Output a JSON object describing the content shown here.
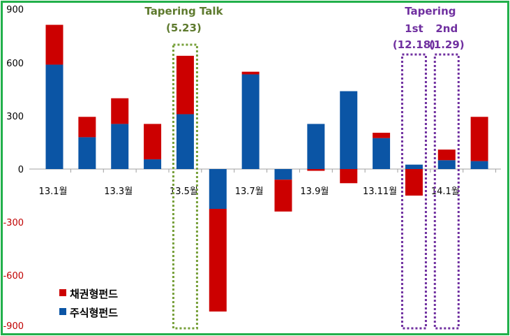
{
  "chart_data": {
    "type": "bar",
    "stacked": true,
    "ylim": [
      -900,
      900
    ],
    "yticks": [
      900,
      600,
      300,
      0,
      -300,
      -600,
      -900
    ],
    "x_tick_labels": [
      {
        "index": 0,
        "label": "13.1월"
      },
      {
        "index": 2,
        "label": "13.3월"
      },
      {
        "index": 4,
        "label": "13.5월"
      },
      {
        "index": 6,
        "label": "13.7월"
      },
      {
        "index": 8,
        "label": "13.9월"
      },
      {
        "index": 10,
        "label": "13.11월"
      },
      {
        "index": 12,
        "label": "14.1월"
      }
    ],
    "series": [
      {
        "name": "주식형펀드",
        "color": "#0b55a5",
        "values": [
          590,
          180,
          255,
          55,
          310,
          -225,
          535,
          -60,
          255,
          440,
          175,
          25,
          50,
          45
        ]
      },
      {
        "name": "채권형펀드",
        "color": "#cc0000",
        "values": [
          225,
          115,
          145,
          200,
          330,
          -580,
          15,
          -180,
          -10,
          -80,
          30,
          -150,
          60,
          250
        ]
      }
    ],
    "legend_placement": "bottom-left",
    "annotations": [
      {
        "lines": [
          "Tapering Talk",
          "(5.23)"
        ],
        "color": "#6a8a36",
        "at_index": 4
      },
      {
        "lines": [
          "Tapering"
        ],
        "color": "#7030a0",
        "at_index": 11.5
      },
      {
        "lines": [
          "1st",
          "(12.18)"
        ],
        "color": "#7030a0",
        "at_index": 11
      },
      {
        "lines": [
          "2nd",
          "(1.29)"
        ],
        "color": "#7030a0",
        "at_index": 12
      }
    ]
  }
}
